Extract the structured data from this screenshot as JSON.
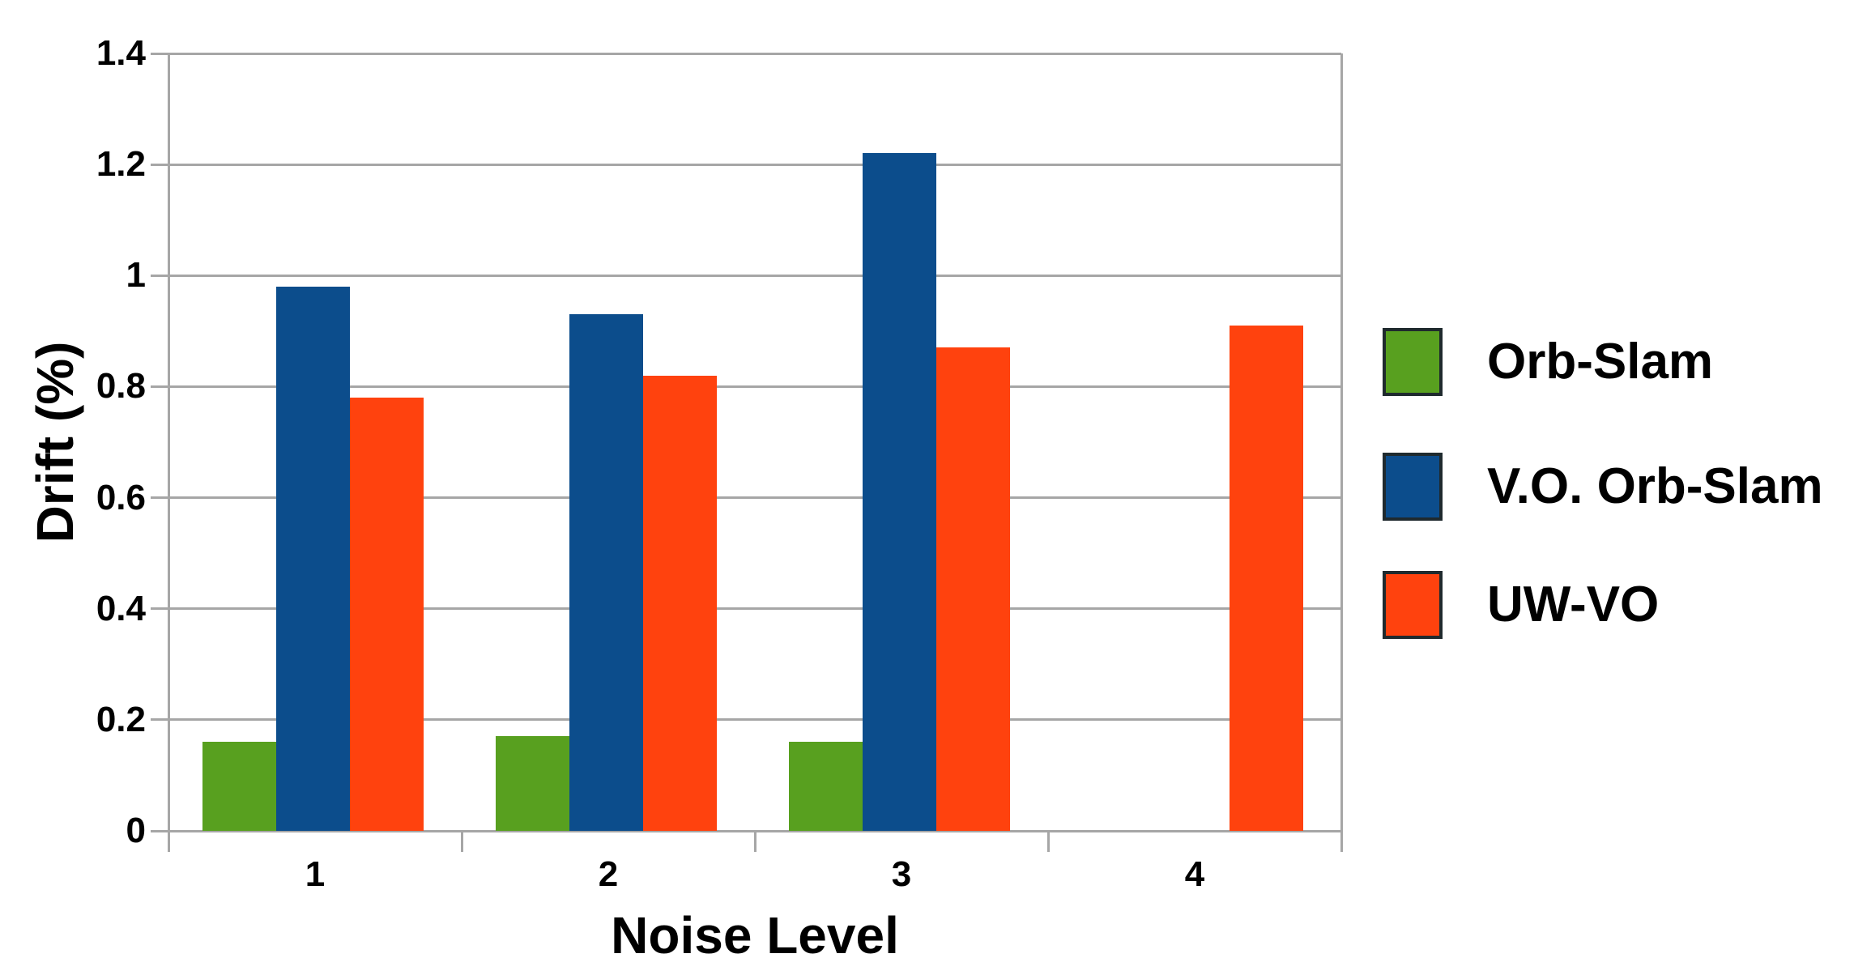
{
  "chart_data": {
    "type": "bar",
    "title": "",
    "xlabel": "Noise Level",
    "ylabel": "Drift (%)",
    "categories": [
      "1",
      "2",
      "3",
      "4"
    ],
    "series": [
      {
        "name": "Orb-Slam",
        "color": "#58a01f",
        "values": [
          0.16,
          0.17,
          0.16,
          0
        ]
      },
      {
        "name": "V.O. Orb-Slam",
        "color": "#0c4d8c",
        "values": [
          0.98,
          0.93,
          1.22,
          0
        ]
      },
      {
        "name": "UW-VO",
        "color": "#ff420e",
        "values": [
          0.78,
          0.82,
          0.87,
          0.91
        ]
      }
    ],
    "ylim": [
      0,
      1.4
    ],
    "ytick_step": 0.2,
    "ytick_labels": [
      "0",
      "0.2",
      "0.4",
      "0.6",
      "0.8",
      "1",
      "1.2",
      "1.4"
    ],
    "grid": "horizontal",
    "legend_position": "right"
  },
  "colors": {
    "grid": "#a6a6a6",
    "text": "#000000",
    "background": "#ffffff"
  }
}
